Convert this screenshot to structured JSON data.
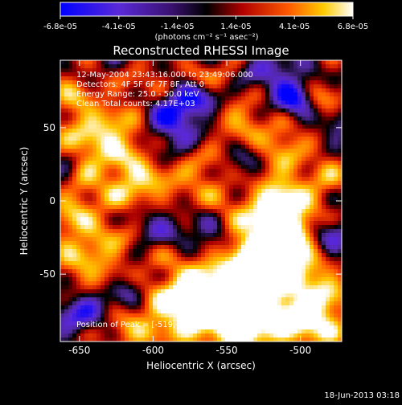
{
  "colorbar": {
    "tick_labels": [
      "-6.8e-05",
      "-4.1e-05",
      "-1.4e-05",
      "1.4e-05",
      "4.1e-05",
      "6.8e-05"
    ],
    "units": "(photons cm⁻² s⁻¹ asec⁻²)"
  },
  "title": "Reconstructed RHESSI Image",
  "annotations": {
    "time": "12-May-2004 23:43:16.000 to 23:49:06.000",
    "detectors": "Detectors: 4F 5F 6F 7F 8F, Att 0",
    "energy": "Energy Range: 25.0 - 50.0 keV",
    "clean": "Clean     Total counts: 4.17E+03",
    "peak": "Position of Peak = [-519,-44]"
  },
  "footer_date": "18-Jun-2013 03:18",
  "chart_data": {
    "type": "heatmap",
    "title": "Reconstructed RHESSI Image",
    "xlabel": "Heliocentric X (arcsec)",
    "ylabel": "Heliocentric Y (arcsec)",
    "xlim": [
      -663,
      -472
    ],
    "ylim": [
      -96,
      96
    ],
    "x_ticks": [
      -650,
      -600,
      -550,
      -500
    ],
    "y_ticks": [
      -50,
      0,
      50
    ],
    "x_tick_labels": [
      "-650",
      "-600",
      "-550",
      "-500"
    ],
    "y_tick_labels": [
      "-50",
      "0",
      "50"
    ],
    "value_range": [
      -6.8e-05,
      6.8e-05
    ],
    "peak_position": [
      -519,
      -44
    ],
    "colormap": [
      "#0000ff",
      "#8a2be2",
      "#000000",
      "#c00000",
      "#ff6600",
      "#ffcc00",
      "#ffffff"
    ],
    "grid": false
  }
}
